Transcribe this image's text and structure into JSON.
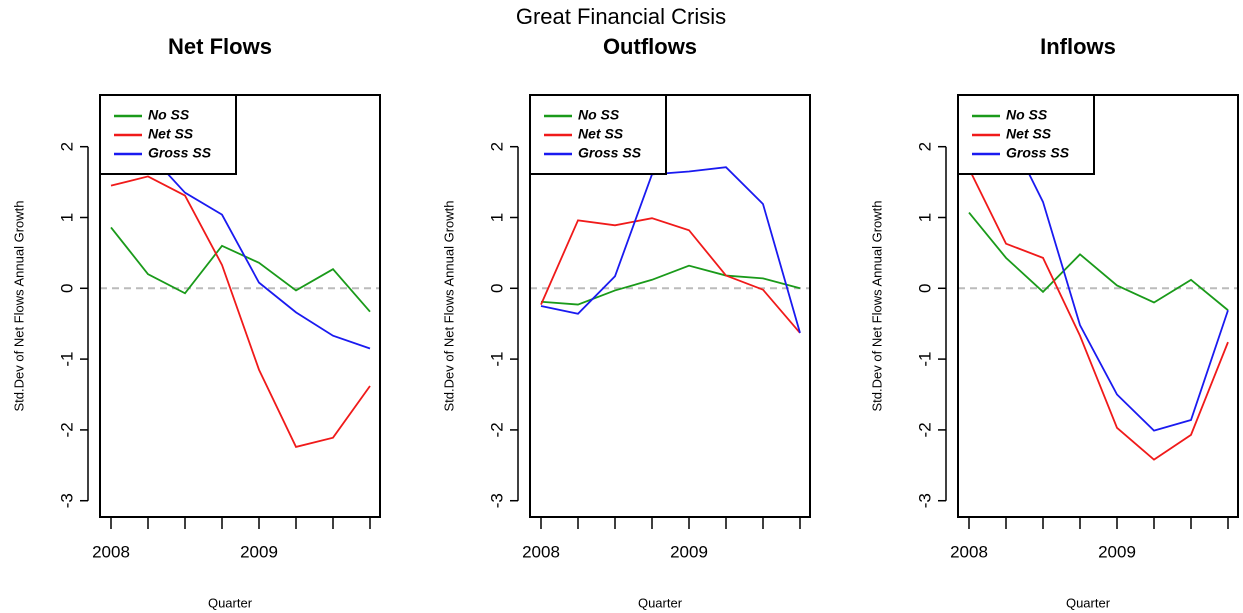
{
  "title": "Great Financial Crisis",
  "chart_data": [
    {
      "type": "line",
      "title": "Net Flows",
      "ylabel": "Std.Dev of Net Flows Annual Growth",
      "xlabel": "Quarter",
      "categories": [
        "2008",
        null,
        null,
        null,
        "2009",
        null,
        null,
        null
      ],
      "ylim": [
        -3.23,
        2.73
      ],
      "yticks": [
        -3,
        -2,
        -1,
        0,
        1,
        2
      ],
      "refline": 0,
      "legend": "top-left",
      "series": [
        {
          "name": "No SS",
          "color": "#1a9a1a",
          "values": [
            0.86,
            0.2,
            -0.07,
            0.6,
            0.36,
            -0.03,
            0.27,
            -0.33
          ]
        },
        {
          "name": "Net SS",
          "color": "#f01a1a",
          "values": [
            1.45,
            1.58,
            1.31,
            0.33,
            -1.15,
            -2.24,
            -2.11,
            -1.38
          ]
        },
        {
          "name": "Gross SS",
          "color": "#1a1af0",
          "values": [
            1.92,
            1.92,
            1.35,
            1.04,
            0.08,
            -0.34,
            -0.67,
            -0.85
          ]
        }
      ]
    },
    {
      "type": "line",
      "title": "Outflows",
      "ylabel": "Std.Dev of Net Flows Annual Growth",
      "xlabel": "Quarter",
      "categories": [
        "2008",
        null,
        null,
        null,
        "2009",
        null,
        null,
        null
      ],
      "ylim": [
        -3.23,
        2.73
      ],
      "yticks": [
        -3,
        -2,
        -1,
        0,
        1,
        2
      ],
      "refline": 0,
      "legend": "top-left",
      "series": [
        {
          "name": "No SS",
          "color": "#1a9a1a",
          "values": [
            -0.19,
            -0.23,
            -0.03,
            0.12,
            0.32,
            0.18,
            0.14,
            0
          ]
        },
        {
          "name": "Net SS",
          "color": "#f01a1a",
          "values": [
            -0.23,
            0.96,
            0.89,
            0.99,
            0.82,
            0.18,
            -0.02,
            -0.63
          ]
        },
        {
          "name": "Gross SS",
          "color": "#1a1af0",
          "values": [
            -0.25,
            -0.36,
            0.17,
            1.61,
            1.65,
            1.71,
            1.19,
            -0.63
          ]
        }
      ]
    },
    {
      "type": "line",
      "title": "Inflows",
      "ylabel": "Std.Dev of Net Flows Annual Growth",
      "xlabel": "Quarter",
      "categories": [
        "2008",
        null,
        null,
        null,
        "2009",
        null,
        null,
        null
      ],
      "ylim": [
        -3.23,
        2.73
      ],
      "yticks": [
        -3,
        -2,
        -1,
        0,
        1,
        2
      ],
      "refline": 0,
      "legend": "top-left",
      "series": [
        {
          "name": "No SS",
          "color": "#1a9a1a",
          "values": [
            1.07,
            0.43,
            -0.05,
            0.48,
            0.04,
            -0.2,
            0.12,
            -0.31
          ]
        },
        {
          "name": "Net SS",
          "color": "#f01a1a",
          "values": [
            1.69,
            0.63,
            0.43,
            -0.67,
            -1.97,
            -2.42,
            -2.07,
            -0.76
          ]
        },
        {
          "name": "Gross SS",
          "color": "#1a1af0",
          "values": [
            2.18,
            2.27,
            1.22,
            -0.52,
            -1.5,
            -2.01,
            -1.86,
            -0.31
          ]
        }
      ]
    }
  ]
}
